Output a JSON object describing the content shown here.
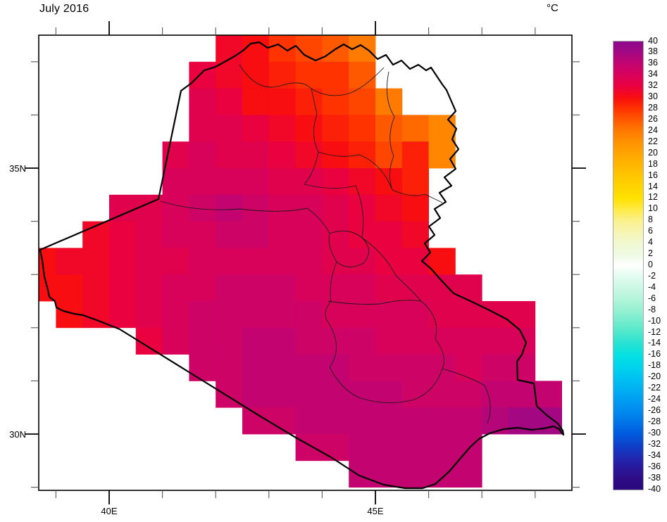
{
  "page": {
    "title": "July 2016"
  },
  "axes": {
    "x_ticks": [
      39,
      40,
      41,
      42,
      43,
      44,
      45,
      46,
      47,
      48
    ],
    "x_major": [
      40,
      45
    ],
    "x_labels": {
      "40": "40E",
      "45": "45E"
    },
    "y_ticks": [
      29,
      30,
      31,
      32,
      33,
      34,
      35,
      36,
      37
    ],
    "y_major": [
      30,
      35
    ],
    "y_labels": {
      "30": "30N",
      "35": "35N"
    }
  },
  "colorbar": {
    "unit": "°C",
    "max": 40,
    "min": -40,
    "label_step": 2,
    "stops": {
      "40": "#8C0A8C",
      "38": "#A40782",
      "36": "#C30470",
      "34": "#D9025B",
      "32": "#E90140",
      "30": "#F80D10",
      "28": "#FF3300",
      "26": "#FF5900",
      "24": "#FF7A00",
      "22": "#FF9200",
      "20": "#FFA500",
      "18": "#FFB600",
      "16": "#FFC600",
      "14": "#FFD400",
      "12": "#FFE100",
      "10": "#FFEA45",
      "8": "#FAF08E",
      "6": "#F6F5B4",
      "4": "#F2F8D0",
      "2": "#EEFAE4",
      "0": "#FFFFFF",
      "-2": "#E2FBF0",
      "-4": "#CCF8E5",
      "-6": "#B3F4DA",
      "-8": "#96F0D2",
      "-10": "#74ECCD",
      "-12": "#4EE7CC",
      "-14": "#26E2D3",
      "-16": "#05E1E1",
      "-18": "#00D5EC",
      "-20": "#00C3F1",
      "-22": "#00B0F2",
      "-24": "#009DF1",
      "-26": "#008AEE",
      "-28": "#0074E8",
      "-30": "#005BDD",
      "-32": "#0E41CA",
      "-34": "#1E2CB4",
      "-36": "#28189C",
      "-38": "#2E0D85",
      "-40": "#2A097D"
    }
  },
  "chart_data": {
    "type": "heatmap",
    "title": "July 2016",
    "units": "°C",
    "xlabel_ticks": [
      "40E",
      "45E"
    ],
    "ylabel_ticks": [
      "30N",
      "35N"
    ],
    "x_range_deg": [
      38.68,
      48.68
    ],
    "y_range_deg": [
      28.94,
      37.5
    ],
    "colorbar_range": [
      -40,
      40
    ],
    "colorbar_tick_step": 2,
    "grid": {
      "lon_min": 38.5,
      "lat_max": 37.5,
      "cell_deg": 0.5,
      "note": "rows top-to-bottom from 37.5N, cols left-to-right from 38.5E, values in degC",
      "values": [
        [
          null,
          null,
          null,
          null,
          null,
          null,
          null,
          31,
          30,
          28,
          27,
          26,
          24,
          null,
          null,
          null,
          null,
          null,
          null,
          null
        ],
        [
          null,
          null,
          null,
          null,
          null,
          null,
          32,
          31,
          30,
          29,
          28,
          28,
          26,
          null,
          null,
          null,
          null,
          null,
          null,
          null
        ],
        [
          null,
          null,
          null,
          null,
          null,
          null,
          33,
          32,
          30,
          30,
          29,
          28,
          27,
          24,
          null,
          null,
          null,
          null,
          null,
          null
        ],
        [
          null,
          null,
          null,
          null,
          null,
          null,
          33,
          33,
          32,
          31,
          30,
          29,
          28,
          26,
          25,
          23,
          null,
          null,
          null,
          null
        ],
        [
          null,
          null,
          null,
          null,
          null,
          33,
          34,
          33,
          33,
          32,
          31,
          30,
          29,
          27,
          29,
          23,
          null,
          null,
          null,
          null
        ],
        [
          null,
          null,
          null,
          null,
          null,
          34,
          34,
          34,
          34,
          33,
          33,
          32,
          31,
          30,
          29,
          null,
          null,
          null,
          null,
          null
        ],
        [
          null,
          null,
          null,
          33,
          33,
          34,
          35,
          36,
          35,
          34,
          34,
          33,
          32,
          31,
          30,
          null,
          null,
          null,
          null,
          null
        ],
        [
          null,
          null,
          31,
          32,
          33,
          34,
          34,
          35,
          35,
          34,
          34,
          33,
          32,
          32,
          31,
          null,
          null,
          null,
          null,
          null
        ],
        [
          30,
          31,
          31,
          32,
          33,
          33,
          34,
          34,
          34,
          34,
          34,
          33,
          33,
          32,
          32,
          30,
          null,
          null,
          null,
          null
        ],
        [
          30,
          30,
          31,
          32,
          33,
          34,
          34,
          35,
          35,
          35,
          34,
          34,
          34,
          33,
          33,
          33,
          33,
          null,
          null,
          null
        ],
        [
          null,
          30,
          31,
          32,
          33,
          34,
          35,
          35,
          35,
          35,
          35,
          34,
          34,
          34,
          34,
          33,
          33,
          33,
          33,
          null
        ],
        [
          null,
          null,
          null,
          null,
          32,
          34,
          35,
          35,
          36,
          36,
          35,
          35,
          35,
          34,
          34,
          34,
          34,
          34,
          34,
          null
        ],
        [
          null,
          null,
          null,
          null,
          null,
          null,
          35,
          35,
          36,
          36,
          36,
          36,
          35,
          35,
          35,
          35,
          34,
          35,
          35,
          null
        ],
        [
          null,
          null,
          null,
          null,
          null,
          null,
          null,
          35,
          36,
          36,
          36,
          36,
          36,
          36,
          35,
          35,
          35,
          36,
          36,
          36
        ],
        [
          null,
          null,
          null,
          null,
          null,
          null,
          null,
          null,
          35,
          35,
          36,
          36,
          36,
          36,
          36,
          36,
          36,
          37,
          38,
          38
        ],
        [
          null,
          null,
          null,
          null,
          null,
          null,
          null,
          null,
          null,
          null,
          35,
          35,
          36,
          36,
          36,
          36,
          36,
          null,
          null,
          null
        ],
        [
          null,
          null,
          null,
          null,
          null,
          null,
          null,
          null,
          null,
          null,
          null,
          null,
          36,
          36,
          36,
          36,
          36,
          null,
          null,
          null
        ]
      ]
    }
  }
}
